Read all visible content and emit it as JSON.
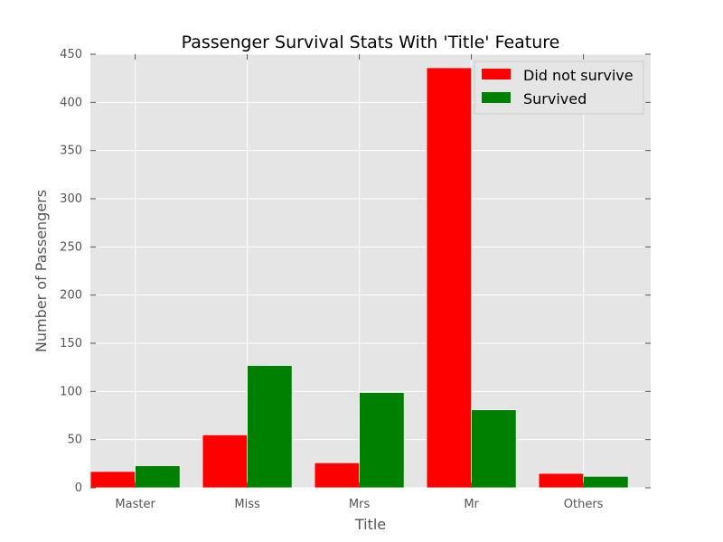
{
  "chart_data": {
    "type": "bar",
    "title": "Passenger Survival Stats With 'Title' Feature",
    "xlabel": "Title",
    "ylabel": "Number of Passengers",
    "categories": [
      "Master",
      "Miss",
      "Mrs",
      "Mr",
      "Others"
    ],
    "series": [
      {
        "name": "Did not survive",
        "color": "#ff0000",
        "values": [
          17,
          55,
          26,
          436,
          15
        ]
      },
      {
        "name": "Survived",
        "color": "#008000",
        "values": [
          23,
          127,
          99,
          81,
          12
        ]
      }
    ],
    "ylim": [
      0,
      450
    ],
    "yticks": [
      0,
      50,
      100,
      150,
      200,
      250,
      300,
      350,
      400,
      450
    ],
    "grid": true,
    "legend_position": "top-right",
    "background": "#e5e5e5"
  }
}
